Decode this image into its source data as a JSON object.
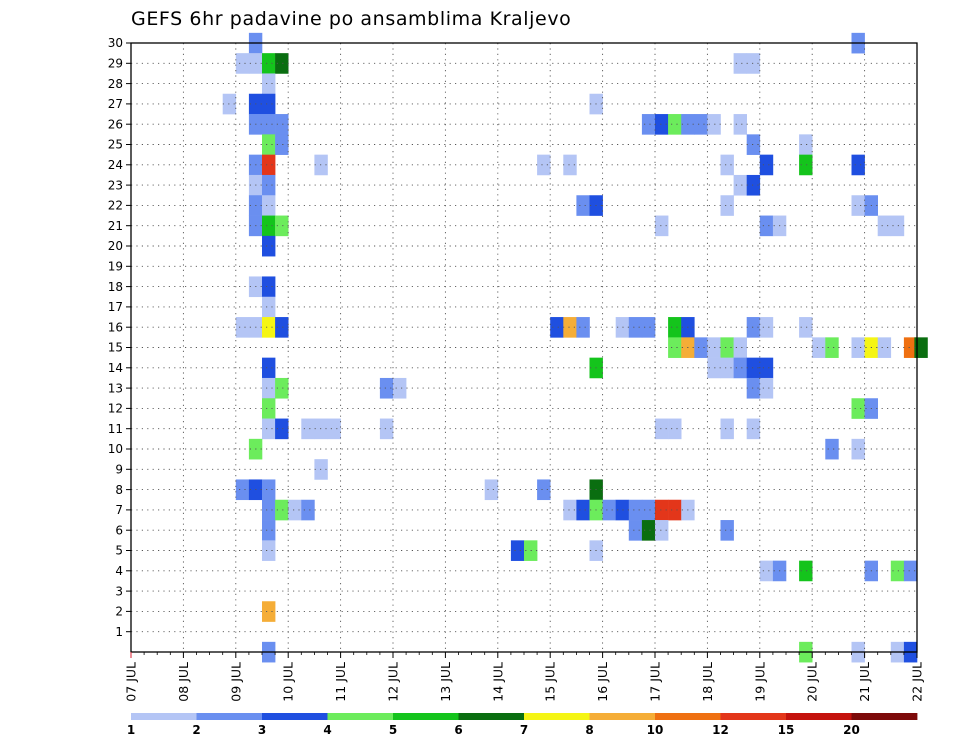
{
  "chart_data": {
    "type": "heatmap",
    "title": "GEFS 6hr padavine po ansamblima Kraljevo",
    "xlabel": "",
    "ylabel": "",
    "x_unit": "days since 07 JUL",
    "xlim": [
      0,
      15
    ],
    "ylim": [
      0,
      30
    ],
    "x_ticks": [
      "07 JUL",
      "08 JUL",
      "09 JUL",
      "10 JUL",
      "11 JUL",
      "12 JUL",
      "13 JUL",
      "14 JUL",
      "15 JUL",
      "16 JUL",
      "17 JUL",
      "18 JUL",
      "19 JUL",
      "20 JUL",
      "21 JUL",
      "22 JUL"
    ],
    "y_ticks": [
      1,
      2,
      3,
      4,
      5,
      6,
      7,
      8,
      9,
      10,
      11,
      12,
      13,
      14,
      15,
      16,
      17,
      18,
      19,
      20,
      21,
      22,
      23,
      24,
      25,
      26,
      27,
      28,
      29,
      30
    ],
    "grid": true,
    "legend_placement": "bottom",
    "legend_labels": [
      "1",
      "2",
      "3",
      "4",
      "5",
      "6",
      "7",
      "8",
      "10",
      "12",
      "15",
      "20"
    ],
    "legend_colors": [
      "#b4c5f5",
      "#6a8ff0",
      "#1f4fe0",
      "#6cec5c",
      "#14c41c",
      "#0a6e10",
      "#f5f514",
      "#f5ad37",
      "#ef7011",
      "#e3361a",
      "#c4120d",
      "#7d0a0a"
    ],
    "cells_format": "[x, member, class]",
    "cells": [
      [
        2.25,
        30,
        1
      ],
      [
        13.75,
        30,
        1
      ],
      [
        2.25,
        29,
        0
      ],
      [
        2.0,
        29,
        0
      ],
      [
        2.5,
        29,
        4
      ],
      [
        2.75,
        29,
        5
      ],
      [
        11.5,
        29,
        0
      ],
      [
        11.75,
        29,
        0
      ],
      [
        2.5,
        28,
        0
      ],
      [
        1.75,
        27,
        0
      ],
      [
        2.25,
        27,
        2
      ],
      [
        2.5,
        27,
        2
      ],
      [
        8.75,
        27,
        0
      ],
      [
        2.25,
        26,
        1
      ],
      [
        2.5,
        26,
        1
      ],
      [
        2.75,
        26,
        1
      ],
      [
        9.75,
        26,
        1
      ],
      [
        10.0,
        26,
        2
      ],
      [
        10.25,
        26,
        3
      ],
      [
        10.5,
        26,
        1
      ],
      [
        10.75,
        26,
        1
      ],
      [
        11.0,
        26,
        0
      ],
      [
        11.5,
        26,
        0
      ],
      [
        2.5,
        25,
        3
      ],
      [
        2.75,
        25,
        1
      ],
      [
        11.75,
        25,
        1
      ],
      [
        12.75,
        25,
        0
      ],
      [
        2.25,
        24,
        1
      ],
      [
        2.5,
        24,
        9
      ],
      [
        3.5,
        24,
        0
      ],
      [
        7.75,
        24,
        0
      ],
      [
        8.25,
        24,
        0
      ],
      [
        11.25,
        24,
        0
      ],
      [
        12.0,
        24,
        2
      ],
      [
        12.75,
        24,
        4
      ],
      [
        13.75,
        24,
        2
      ],
      [
        2.25,
        23,
        0
      ],
      [
        2.5,
        23,
        1
      ],
      [
        11.5,
        23,
        0
      ],
      [
        11.75,
        23,
        2
      ],
      [
        2.25,
        22,
        1
      ],
      [
        2.5,
        22,
        0
      ],
      [
        8.5,
        22,
        1
      ],
      [
        8.75,
        22,
        2
      ],
      [
        11.25,
        22,
        0
      ],
      [
        13.75,
        22,
        0
      ],
      [
        14.0,
        22,
        1
      ],
      [
        2.25,
        21,
        1
      ],
      [
        2.5,
        21,
        4
      ],
      [
        2.75,
        21,
        3
      ],
      [
        10.0,
        21,
        0
      ],
      [
        12.0,
        21,
        1
      ],
      [
        12.25,
        21,
        0
      ],
      [
        14.25,
        21,
        0
      ],
      [
        14.5,
        21,
        0
      ],
      [
        2.5,
        20,
        2
      ],
      [
        2.25,
        18,
        0
      ],
      [
        2.5,
        18,
        2
      ],
      [
        2.5,
        17,
        0
      ],
      [
        2.0,
        16,
        0
      ],
      [
        2.25,
        16,
        0
      ],
      [
        2.5,
        16,
        6
      ],
      [
        2.75,
        16,
        2
      ],
      [
        8.0,
        16,
        2
      ],
      [
        8.25,
        16,
        7
      ],
      [
        8.5,
        16,
        1
      ],
      [
        9.25,
        16,
        0
      ],
      [
        9.5,
        16,
        1
      ],
      [
        9.75,
        16,
        1
      ],
      [
        10.25,
        16,
        4
      ],
      [
        10.5,
        16,
        2
      ],
      [
        11.75,
        16,
        1
      ],
      [
        12.0,
        16,
        0
      ],
      [
        12.75,
        16,
        0
      ],
      [
        10.25,
        15,
        3
      ],
      [
        10.5,
        15,
        7
      ],
      [
        10.75,
        15,
        1
      ],
      [
        11.0,
        15,
        0
      ],
      [
        11.25,
        15,
        3
      ],
      [
        11.5,
        15,
        0
      ],
      [
        13.0,
        15,
        0
      ],
      [
        13.25,
        15,
        3
      ],
      [
        13.75,
        15,
        0
      ],
      [
        14.0,
        15,
        6
      ],
      [
        14.25,
        15,
        0
      ],
      [
        14.75,
        15,
        8
      ],
      [
        14.95,
        15,
        5
      ],
      [
        2.5,
        14,
        2
      ],
      [
        8.75,
        14,
        4
      ],
      [
        11.0,
        14,
        0
      ],
      [
        11.25,
        14,
        0
      ],
      [
        11.5,
        14,
        1
      ],
      [
        11.75,
        14,
        2
      ],
      [
        12.0,
        14,
        2
      ],
      [
        2.5,
        13,
        0
      ],
      [
        2.75,
        13,
        3
      ],
      [
        4.75,
        13,
        1
      ],
      [
        5.0,
        13,
        0
      ],
      [
        11.75,
        13,
        1
      ],
      [
        12.0,
        13,
        0
      ],
      [
        2.5,
        12,
        3
      ],
      [
        13.75,
        12,
        3
      ],
      [
        14.0,
        12,
        1
      ],
      [
        2.5,
        11,
        0
      ],
      [
        2.75,
        11,
        2
      ],
      [
        3.25,
        11,
        0
      ],
      [
        3.5,
        11,
        0
      ],
      [
        3.75,
        11,
        0
      ],
      [
        4.75,
        11,
        0
      ],
      [
        10.0,
        11,
        0
      ],
      [
        10.25,
        11,
        0
      ],
      [
        11.25,
        11,
        0
      ],
      [
        11.75,
        11,
        0
      ],
      [
        2.25,
        10,
        3
      ],
      [
        13.25,
        10,
        1
      ],
      [
        13.75,
        10,
        0
      ],
      [
        3.5,
        9,
        0
      ],
      [
        2.0,
        8,
        1
      ],
      [
        2.25,
        8,
        2
      ],
      [
        2.5,
        8,
        1
      ],
      [
        6.75,
        8,
        0
      ],
      [
        7.75,
        8,
        1
      ],
      [
        8.75,
        8,
        5
      ],
      [
        2.5,
        7,
        1
      ],
      [
        2.75,
        7,
        3
      ],
      [
        3.0,
        7,
        0
      ],
      [
        3.25,
        7,
        1
      ],
      [
        8.25,
        7,
        0
      ],
      [
        8.5,
        7,
        2
      ],
      [
        8.75,
        7,
        3
      ],
      [
        9.0,
        7,
        1
      ],
      [
        9.25,
        7,
        2
      ],
      [
        9.5,
        7,
        1
      ],
      [
        9.75,
        7,
        1
      ],
      [
        10.0,
        7,
        9
      ],
      [
        10.25,
        7,
        9
      ],
      [
        10.5,
        7,
        0
      ],
      [
        2.5,
        6,
        1
      ],
      [
        9.5,
        6,
        1
      ],
      [
        9.75,
        6,
        5
      ],
      [
        10.0,
        6,
        0
      ],
      [
        11.25,
        6,
        1
      ],
      [
        2.5,
        5,
        0
      ],
      [
        7.25,
        5,
        2
      ],
      [
        7.5,
        5,
        3
      ],
      [
        8.75,
        5,
        0
      ],
      [
        12.0,
        4,
        0
      ],
      [
        12.25,
        4,
        1
      ],
      [
        12.75,
        4,
        4
      ],
      [
        14.0,
        4,
        1
      ],
      [
        14.5,
        4,
        3
      ],
      [
        14.75,
        4,
        1
      ],
      [
        2.5,
        2,
        7
      ],
      [
        2.5,
        0,
        1
      ],
      [
        12.75,
        0,
        3
      ],
      [
        13.75,
        0,
        0
      ],
      [
        14.5,
        0,
        0
      ],
      [
        14.75,
        0,
        2
      ]
    ]
  }
}
